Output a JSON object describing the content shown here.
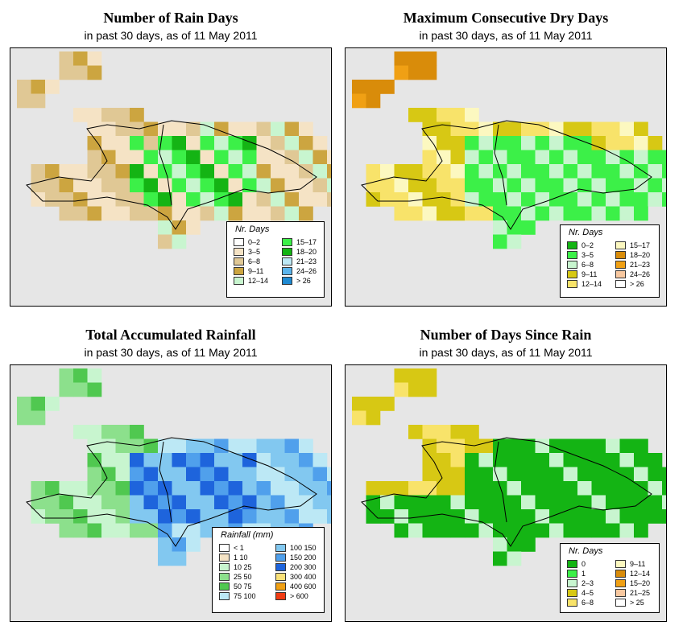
{
  "panels": [
    {
      "id": "rain-days",
      "title": "Number of Rain Days",
      "subtitle": "in past 30 days, as of  11 May 2011",
      "legend": {
        "title": "Nr. Days",
        "items": [
          {
            "label": "0–2",
            "color": "#ffffff"
          },
          {
            "label": "3–5",
            "color": "#f5e3c5"
          },
          {
            "label": "6–8",
            "color": "#e0c895"
          },
          {
            "label": "9–11",
            "color": "#cca540"
          },
          {
            "label": "12–14",
            "color": "#c8f5cf"
          },
          {
            "label": "15–17",
            "color": "#3cf048"
          },
          {
            "label": "18–20",
            "color": "#14b414"
          },
          {
            "label": "21–23",
            "color": "#bce8f5"
          },
          {
            "label": "24–26",
            "color": "#5ab4ec"
          },
          {
            "label": "> 26",
            "color": "#1e8ad2"
          }
        ]
      }
    },
    {
      "id": "dry-days",
      "title": "Maximum Consecutive Dry Days",
      "subtitle": "in past 30 days, as of  11 May 2011",
      "legend": {
        "title": "Nr. Days",
        "items": [
          {
            "label": "0–2",
            "color": "#14b414"
          },
          {
            "label": "3–5",
            "color": "#3cf048"
          },
          {
            "label": "6–8",
            "color": "#c8f5cf"
          },
          {
            "label": "9–11",
            "color": "#d7c814"
          },
          {
            "label": "12–14",
            "color": "#f8e36a"
          },
          {
            "label": "15–17",
            "color": "#fcf8c0"
          },
          {
            "label": "18–20",
            "color": "#d98c0a"
          },
          {
            "label": "21–23",
            "color": "#f0a014"
          },
          {
            "label": "24–26",
            "color": "#f8c8a0"
          },
          {
            "label": "> 26",
            "color": "#ffffff"
          }
        ]
      }
    },
    {
      "id": "rainfall",
      "title": "Total Accumulated Rainfall",
      "subtitle": "in past 30 days, as of  11 May 2011",
      "legend": {
        "title": "Rainfall (mm)",
        "items": [
          {
            "label": "< 1",
            "color": "#ffffff"
          },
          {
            "label": "1    10",
            "color": "#f5e3c5"
          },
          {
            "label": "10    25",
            "color": "#c8f5cf"
          },
          {
            "label": "25    50",
            "color": "#8ce08c"
          },
          {
            "label": "50    75",
            "color": "#50c850"
          },
          {
            "label": "75    100",
            "color": "#bce8f5"
          },
          {
            "label": "100    150",
            "color": "#82c8f0"
          },
          {
            "label": "150    200",
            "color": "#50a0ec"
          },
          {
            "label": "200    300",
            "color": "#1e64dc"
          },
          {
            "label": "300    400",
            "color": "#fae178"
          },
          {
            "label": "400    600",
            "color": "#f0a014"
          },
          {
            "label": "> 600",
            "color": "#f03c14"
          }
        ]
      }
    },
    {
      "id": "since-rain",
      "title": "Number of Days Since Rain",
      "subtitle": "in past 30 days, as of  11 May 2011",
      "legend": {
        "title": "Nr. Days",
        "items": [
          {
            "label": "0",
            "color": "#14b414"
          },
          {
            "label": "1",
            "color": "#3cf048"
          },
          {
            "label": "2–3",
            "color": "#c8f5cf"
          },
          {
            "label": "4–5",
            "color": "#d7c814"
          },
          {
            "label": "6–8",
            "color": "#f8e36a"
          },
          {
            "label": "9–11",
            "color": "#fcf8c0"
          },
          {
            "label": "12–14",
            "color": "#d98c0a"
          },
          {
            "label": "15–20",
            "color": "#f0a014"
          },
          {
            "label": "21–25",
            "color": "#f8c8a0"
          },
          {
            "label": "> 25",
            "color": "#ffffff"
          }
        ]
      }
    }
  ]
}
